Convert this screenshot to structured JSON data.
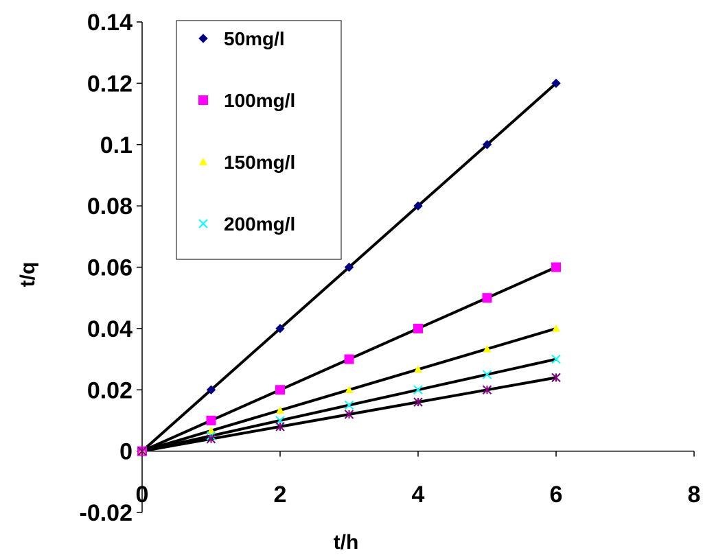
{
  "chart_data": {
    "type": "scatter",
    "title": "",
    "xlabel": "t/h",
    "ylabel": "t/q",
    "xlim": [
      0,
      8
    ],
    "ylim": [
      -0.02,
      0.14
    ],
    "x_ticks": [
      "0",
      "2",
      "4",
      "6",
      "8"
    ],
    "y_ticks": [
      "-0.02",
      "0",
      "0.02",
      "0.04",
      "0.06",
      "0.08",
      "0.1",
      "0.12",
      "0.14"
    ],
    "grid": false,
    "legend_placement": "top-left",
    "x": [
      0,
      1,
      2,
      3,
      4,
      5,
      6
    ],
    "series": [
      {
        "name": "50mg/l",
        "marker": "diamond",
        "color": "#000080",
        "values": [
          0,
          0.02,
          0.04,
          0.06,
          0.08,
          0.1,
          0.12
        ],
        "fit": [
          0,
          0.12
        ]
      },
      {
        "name": "100mg/l",
        "marker": "square",
        "color": "#ff00ff",
        "values": [
          0,
          0.01,
          0.02,
          0.03,
          0.04,
          0.05,
          0.06
        ],
        "fit": [
          0,
          0.06
        ]
      },
      {
        "name": "150mg/l",
        "marker": "triangle",
        "color": "#ffff00",
        "values": [
          0,
          0.0067,
          0.0133,
          0.02,
          0.0267,
          0.0333,
          0.04
        ],
        "fit": [
          0,
          0.04
        ]
      },
      {
        "name": "200mg/l",
        "marker": "x",
        "color": "#00ffff",
        "values": [
          0,
          0.005,
          0.01,
          0.015,
          0.02,
          0.025,
          0.03
        ],
        "fit": [
          0,
          0.03
        ]
      },
      {
        "name": "",
        "marker": "star",
        "color": "#800080",
        "values": [
          0,
          0.004,
          0.008,
          0.012,
          0.016,
          0.02,
          0.024
        ],
        "fit": [
          0,
          0.024
        ]
      }
    ],
    "fit_line_color": "#000000"
  }
}
